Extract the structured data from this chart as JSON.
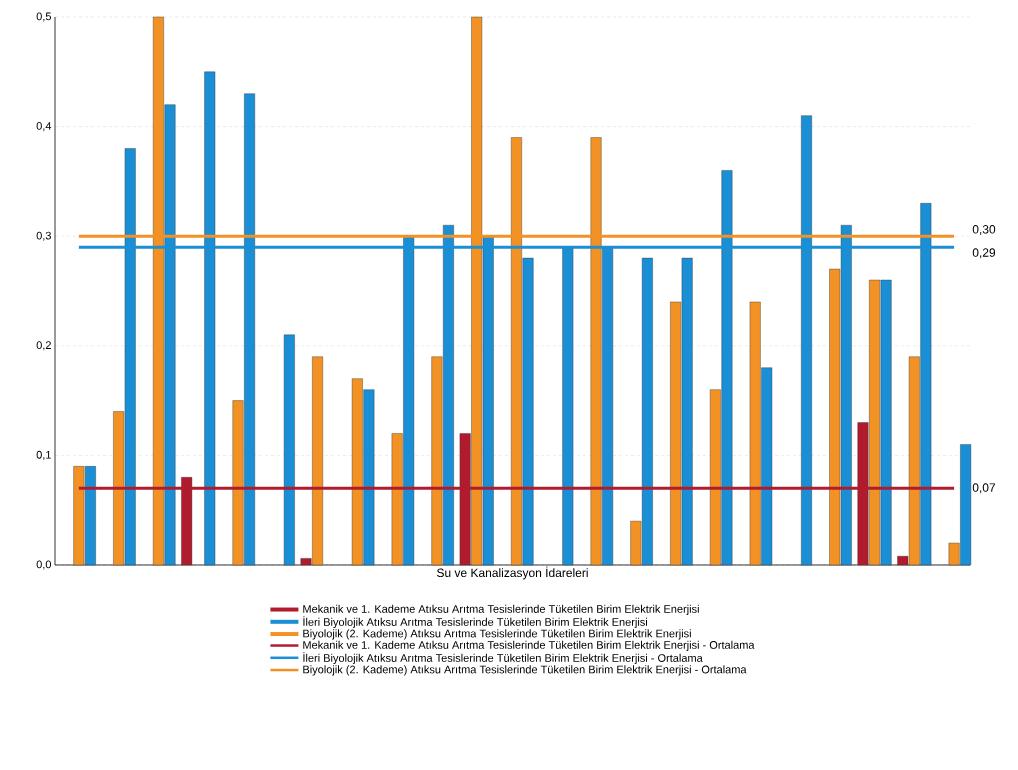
{
  "chart_data": {
    "type": "bar",
    "xlabel": "Su ve Kanalizasyon İdareleri",
    "categories": [
      null,
      null,
      null,
      null,
      null,
      null,
      null,
      null,
      null,
      null,
      null,
      null,
      null,
      null,
      null,
      null,
      null,
      null,
      null,
      null,
      null,
      null,
      null
    ],
    "series": [
      {
        "name": "Mekanik ve 1. Kademe Atıksu Arıtma Tesislerinde Tüketilen Birim Elektrik Enerjisi",
        "color": "#b01c2e",
        "values": [
          null,
          null,
          null,
          0.08,
          null,
          null,
          0.006,
          null,
          null,
          null,
          0.12,
          null,
          null,
          null,
          null,
          null,
          null,
          null,
          null,
          null,
          0.13,
          0.008,
          null
        ]
      },
      {
        "name": "İleri Biyolojik Atıksu Arıtma Tesislerinde Tüketilen Birim Elektrik Enerjisi",
        "color": "#1a8fd6",
        "values": [
          0.09,
          0.38,
          0.42,
          0.45,
          0.43,
          0.21,
          null,
          0.16,
          0.3,
          0.31,
          0.3,
          0.28,
          0.29,
          0.29,
          0.28,
          0.28,
          0.36,
          0.18,
          0.41,
          0.31,
          0.26,
          0.33,
          0.11
        ]
      },
      {
        "name": "Biyolojik (2. Kademe) Atıksu Arıtma Tesislerinde Tüketilen Birim Elektrik Enerjisi",
        "color": "#f39224",
        "values": [
          0.09,
          0.14,
          0.5,
          null,
          0.15,
          null,
          0.19,
          0.17,
          0.12,
          0.19,
          0.5,
          0.39,
          null,
          0.39,
          0.04,
          0.24,
          0.16,
          0.24,
          null,
          0.27,
          0.26,
          0.19,
          0.02
        ]
      },
      {
        "type": "line",
        "name": "Mekanik ve 1. Kademe Atıksu Arıtma Tesislerinde Tüketilen Birim Elektrik Enerjisi - Ortalama",
        "color": "#b01c2e",
        "values": [
          0.07,
          0.07,
          0.07,
          0.07,
          0.07,
          0.07,
          0.07,
          0.07,
          0.07,
          0.07,
          0.07,
          0.07,
          0.07,
          0.07,
          0.07,
          0.07,
          0.07,
          0.07,
          0.07,
          0.07,
          0.07,
          0.07,
          0.07
        ],
        "value_labels": [
          null,
          null,
          null,
          null,
          null,
          null,
          null,
          null,
          null,
          null,
          null,
          null,
          null,
          null,
          null,
          null,
          null,
          null,
          null,
          null,
          null,
          null,
          "0,07"
        ]
      },
      {
        "type": "line",
        "name": "İleri Biyolojik Atıksu Arıtma Tesislerinde Tüketilen Birim Elektrik Enerjisi - Ortalama",
        "color": "#1a8fd6",
        "values": [
          0.29,
          0.29,
          0.29,
          0.29,
          0.29,
          0.29,
          0.29,
          0.29,
          0.29,
          0.29,
          0.29,
          0.29,
          0.29,
          0.29,
          0.29,
          0.29,
          0.29,
          0.29,
          0.29,
          0.29,
          0.29,
          0.29,
          0.29
        ],
        "value_labels": [
          null,
          null,
          null,
          null,
          null,
          null,
          null,
          null,
          null,
          null,
          null,
          null,
          null,
          null,
          null,
          null,
          null,
          null,
          null,
          null,
          null,
          null,
          "0,29"
        ]
      },
      {
        "type": "line",
        "name": "Biyolojik (2. Kademe) Atıksu Arıtma Tesislerinde Tüketilen Birim Elektrik Enerjisi - Ortalama",
        "color": "#f39224",
        "values": [
          0.3,
          0.3,
          0.3,
          0.3,
          0.3,
          0.3,
          0.3,
          0.3,
          0.3,
          0.3,
          0.3,
          0.3,
          0.3,
          0.3,
          0.3,
          0.3,
          0.3,
          0.3,
          0.3,
          0.3,
          0.3,
          0.3,
          0.3
        ],
        "value_labels": [
          null,
          null,
          null,
          null,
          null,
          null,
          null,
          null,
          null,
          null,
          null,
          null,
          null,
          null,
          null,
          null,
          null,
          null,
          null,
          null,
          null,
          null,
          "0,30"
        ]
      }
    ],
    "ylim": [
      0,
      0.5
    ],
    "yticks": [
      {
        "value": 0,
        "label": "0,0"
      },
      {
        "value": 0.1,
        "label": "0,1"
      },
      {
        "value": 0.2,
        "label": "0,2"
      },
      {
        "value": 0.3,
        "label": "0,3"
      },
      {
        "value": 0.4,
        "label": "0,4"
      },
      {
        "value": 0.5,
        "label": "0,5"
      }
    ],
    "grid": "y",
    "legend": "bottom"
  }
}
